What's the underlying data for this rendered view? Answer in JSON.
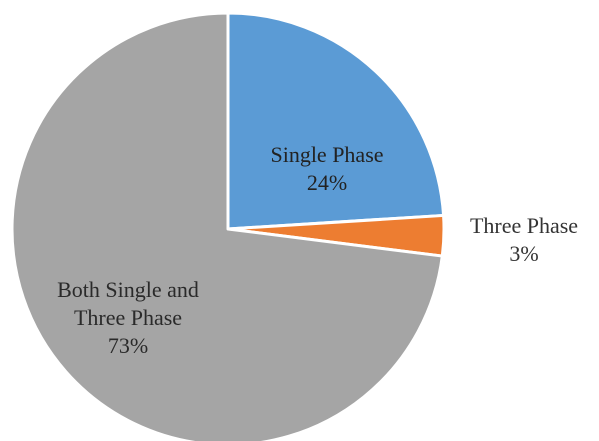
{
  "chart_data": {
    "type": "pie",
    "title": "",
    "start_angle_deg": 0,
    "direction": "clockwise",
    "slices": [
      {
        "name": "Single Phase",
        "value": 24,
        "percent_label": "24%",
        "color": "#5B9BD5",
        "label_lines": [
          "Single Phase",
          "24%"
        ],
        "label_position": "inside"
      },
      {
        "name": "Three Phase",
        "value": 3,
        "percent_label": "3%",
        "color": "#ED7D31",
        "label_lines": [
          "Three Phase",
          "3%"
        ],
        "label_position": "outside"
      },
      {
        "name": "Both Single and Three Phase",
        "value": 73,
        "percent_label": "73%",
        "color": "#A5A5A5",
        "label_lines": [
          "Both Single and",
          "Three Phase",
          "73%"
        ],
        "label_position": "inside"
      }
    ],
    "legend": "none"
  }
}
